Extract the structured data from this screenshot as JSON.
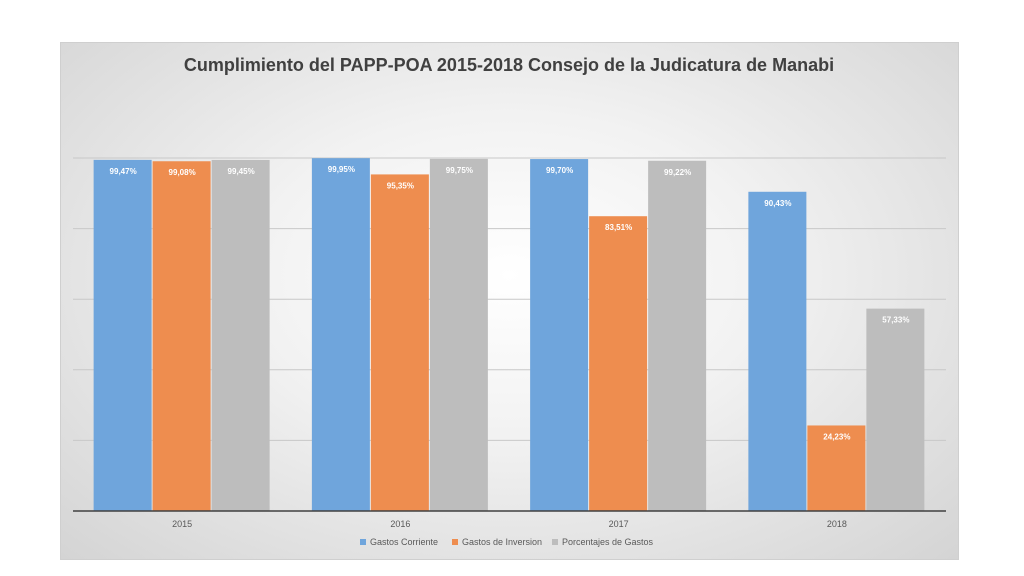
{
  "chart_data": {
    "type": "bar",
    "title": "Cumplimiento del PAPP-POA 2015-2018 Consejo de la Judicatura de Manabi",
    "categories": [
      "2015",
      "2016",
      "2017",
      "2018"
    ],
    "series": [
      {
        "name": "Gastos Corriente",
        "values": [
          99.47,
          99.95,
          99.7,
          90.43
        ],
        "labels": [
          "99,47%",
          "99,95%",
          "99,70%",
          "90,43%"
        ],
        "color": "#6fa5dc"
      },
      {
        "name": "Gastos de Inversion",
        "values": [
          99.08,
          95.35,
          83.51,
          24.23
        ],
        "labels": [
          "99,08%",
          "95,35%",
          "83,51%",
          "24,23%"
        ],
        "color": "#ee8d4f"
      },
      {
        "name": "Porcentajes de Gastos",
        "values": [
          99.45,
          99.75,
          99.22,
          57.33
        ],
        "labels": [
          "99,45%",
          "99,75%",
          "99,22%",
          "57,33%"
        ],
        "color": "#bdbdbd"
      }
    ],
    "ylim": [
      0,
      100
    ],
    "grid": true,
    "legend": "bottom"
  }
}
